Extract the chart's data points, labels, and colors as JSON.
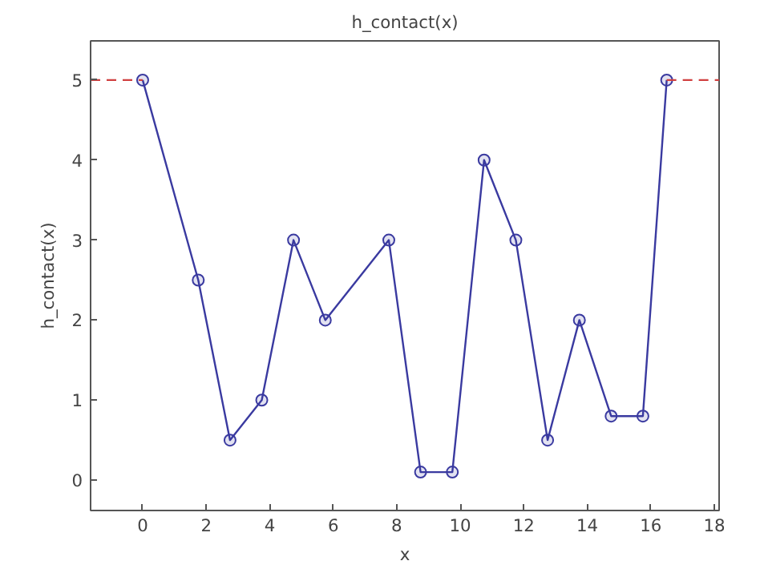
{
  "chart_data": {
    "type": "line",
    "title": "h_contact(x)",
    "xlabel": "x",
    "ylabel": "h_contact(x)",
    "xlim": [
      -1.64,
      18.15
    ],
    "ylim": [
      -0.38,
      5.49
    ],
    "xticks": [
      0,
      2,
      4,
      6,
      8,
      10,
      12,
      14,
      16,
      18
    ],
    "yticks": [
      0,
      1,
      2,
      3,
      4,
      5
    ],
    "grid": false,
    "series": [
      {
        "color": "#3a3aa0",
        "marker": "circle",
        "line_style": "solid",
        "x": [
          0,
          1.75,
          2.75,
          3.75,
          4.75,
          5.75,
          7.75,
          8.75,
          9.75,
          10.75,
          11.75,
          12.75,
          13.75,
          14.75,
          15.75,
          16.5
        ],
        "values": [
          5,
          2.5,
          0.5,
          1,
          3,
          2,
          3,
          0.1,
          0.1,
          4,
          3,
          0.5,
          2,
          0.8,
          0.8,
          5
        ]
      },
      {
        "color": "#d04040",
        "marker": "none",
        "line_style": "dashed",
        "x": [
          -1.64,
          0
        ],
        "values": [
          5,
          5
        ]
      },
      {
        "color": "#d04040",
        "marker": "none",
        "line_style": "dashed",
        "x": [
          16.5,
          18.15
        ],
        "values": [
          5,
          5
        ]
      }
    ]
  }
}
